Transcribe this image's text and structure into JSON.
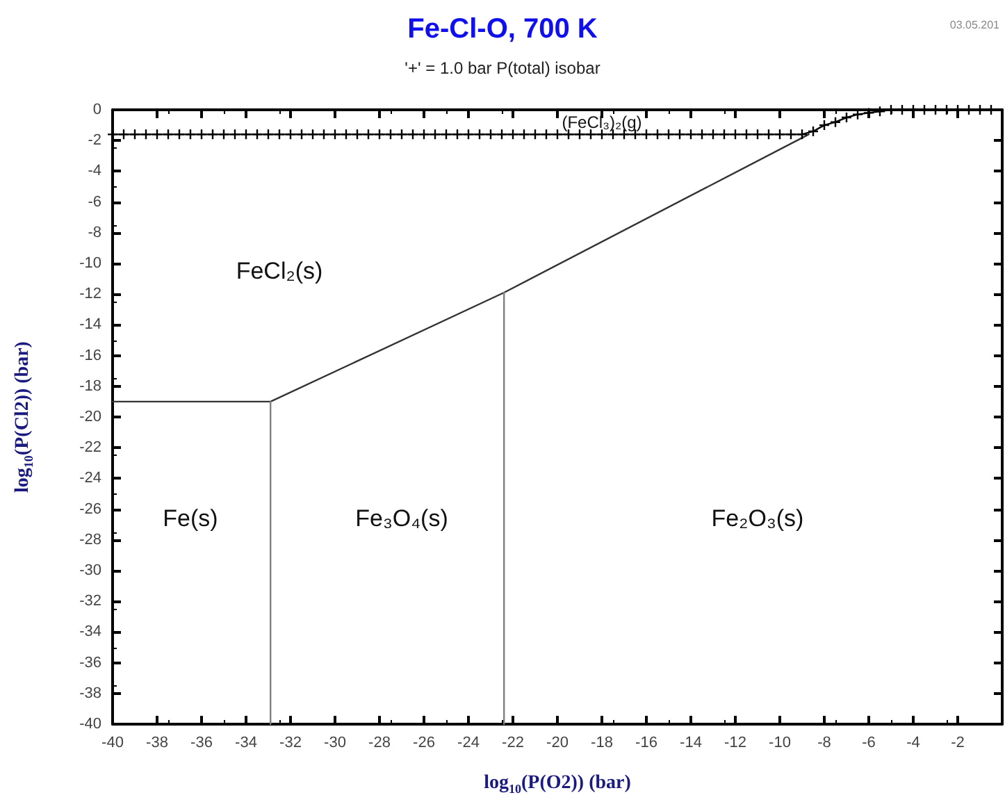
{
  "chart_data": {
    "type": "line",
    "title": "Fe-Cl-O, 700 K",
    "subtitle": "'+' = 1.0 bar P(total) isobar",
    "xlabel": "log$_{10}$(P(O2)) (bar)",
    "ylabel": "log$_{10}$(P(Cl2)) (bar)",
    "xlim": [
      -40,
      0
    ],
    "ylim": [
      -40,
      0
    ],
    "xticks": [
      -40,
      -38,
      -36,
      -34,
      -32,
      -30,
      -28,
      -26,
      -24,
      -22,
      -20,
      -18,
      -16,
      -14,
      -12,
      -10,
      -8,
      -6,
      -4,
      -2
    ],
    "yticks": [
      0,
      -2,
      -4,
      -6,
      -8,
      -10,
      -12,
      -14,
      -16,
      -18,
      -20,
      -22,
      -24,
      -26,
      -28,
      -30,
      -32,
      -34,
      -36,
      -38,
      -40
    ],
    "grid": false,
    "marker": "none",
    "line_style": "solid",
    "series": [
      {
        "color": "#333333",
        "x": [
          -40,
          -32.9,
          -22.4,
          -8.7
        ],
        "values": [
          -19,
          -19,
          -11.9,
          -1.6
        ]
      },
      {
        "color": "#808080",
        "x": [
          -32.9,
          -32.9
        ],
        "values": [
          -19,
          -40
        ]
      },
      {
        "color": "#808080",
        "x": [
          -22.4,
          -22.4
        ],
        "values": [
          -11.9,
          -40
        ]
      },
      {
        "color": "#000000",
        "marker": "cross",
        "x": [
          -40,
          -39.5,
          -39,
          -38.5,
          -38,
          -37.5,
          -37,
          -36.5,
          -36,
          -35.5,
          -35,
          -34.5,
          -34,
          -33.5,
          -33,
          -32.5,
          -32,
          -31.5,
          -31,
          -30.5,
          -30,
          -29.5,
          -29,
          -28.5,
          -28,
          -27.5,
          -27,
          -26.5,
          -26,
          -25.5,
          -25,
          -24.5,
          -24,
          -23.5,
          -23,
          -22.5,
          -22,
          -21.5,
          -21,
          -20.5,
          -20,
          -19.5,
          -19,
          -18.5,
          -18,
          -17.5,
          -17,
          -16.5,
          -16,
          -15.5,
          -15,
          -14.5,
          -14,
          -13.5,
          -13,
          -12.5,
          -12,
          -11.5,
          -11,
          -10.5,
          -10,
          -9.5,
          -9,
          -8.5,
          -8,
          -7.5,
          -7,
          -6.5,
          -6,
          -5.5,
          -5,
          -4.5,
          -4,
          -3.5,
          -3,
          -2.5,
          -2,
          -1.5,
          -1,
          -0.5
        ],
        "values": [
          -1.6,
          -1.6,
          -1.6,
          -1.6,
          -1.6,
          -1.6,
          -1.6,
          -1.6,
          -1.6,
          -1.6,
          -1.6,
          -1.6,
          -1.6,
          -1.6,
          -1.6,
          -1.6,
          -1.6,
          -1.6,
          -1.6,
          -1.6,
          -1.6,
          -1.6,
          -1.6,
          -1.6,
          -1.6,
          -1.6,
          -1.6,
          -1.6,
          -1.6,
          -1.6,
          -1.6,
          -1.6,
          -1.6,
          -1.6,
          -1.6,
          -1.6,
          -1.6,
          -1.6,
          -1.6,
          -1.6,
          -1.6,
          -1.6,
          -1.6,
          -1.6,
          -1.6,
          -1.6,
          -1.6,
          -1.6,
          -1.6,
          -1.6,
          -1.6,
          -1.6,
          -1.6,
          -1.6,
          -1.6,
          -1.6,
          -1.6,
          -1.6,
          -1.6,
          -1.6,
          -1.6,
          -1.6,
          -1.6,
          -1.4,
          -1.0,
          -0.8,
          -0.5,
          -0.3,
          -0.2,
          -0.1,
          0,
          0,
          0,
          0,
          0,
          0,
          0,
          0,
          0,
          0
        ]
      }
    ],
    "annotations": [
      "(FeCl₃)₂(g)",
      "FeCl₂(s)",
      "Fe(s)",
      "Fe₃O₄(s)",
      "Fe₂O₃(s)",
      "03.05.201"
    ]
  }
}
